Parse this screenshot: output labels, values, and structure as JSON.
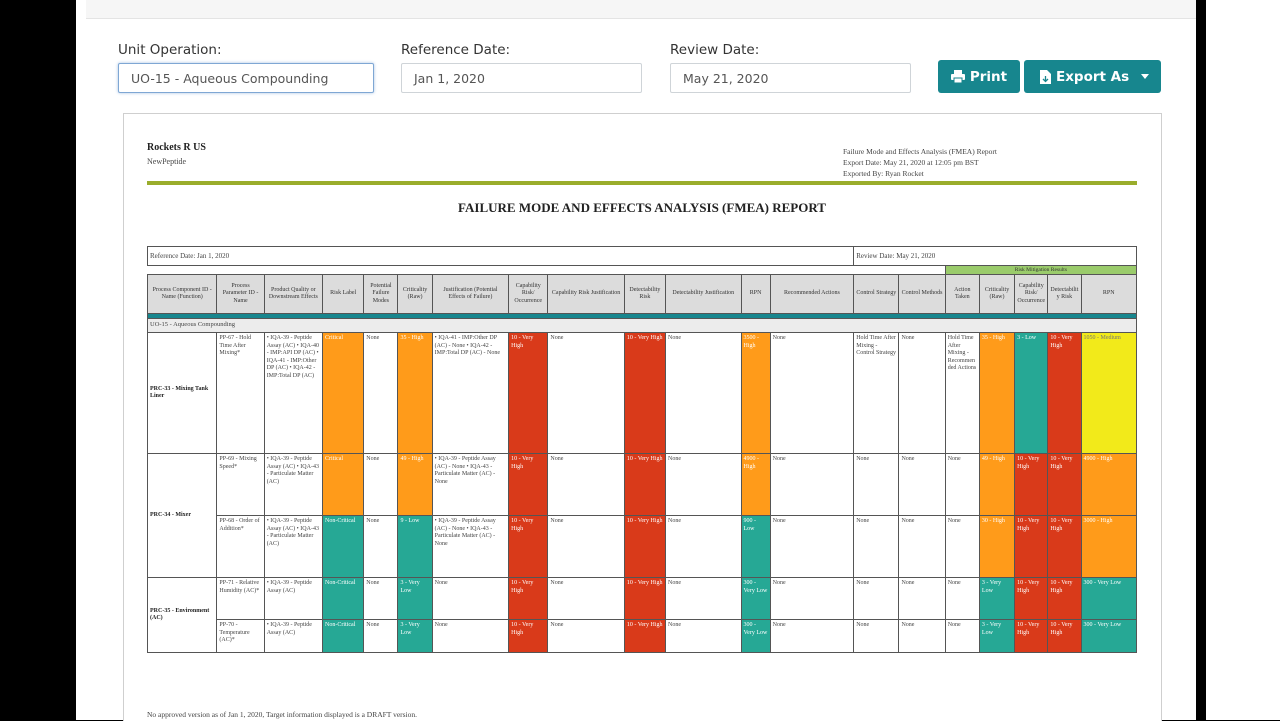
{
  "form": {
    "unit_operation": {
      "label": "Unit Operation:",
      "value": "UO-15 - Aqueous Compounding"
    },
    "reference_date": {
      "label": "Reference Date:",
      "value": "Jan 1, 2020"
    },
    "review_date": {
      "label": "Review Date:",
      "value": "May 21, 2020"
    }
  },
  "buttons": {
    "print": "Print",
    "export": "Export As"
  },
  "report": {
    "company": "Rockets R US",
    "product": "NewPeptide",
    "meta_title": "Failure Mode and Effects Analysis (FMEA) Report",
    "export_date": "Export Date:   May 21, 2020 at 12:05 pm BST",
    "exported_by": "Exported By:   Ryan Rocket",
    "title": "FAILURE MODE AND EFFECTS ANALYSIS (FMEA) REPORT",
    "ref_date": "Reference Date: Jan 1, 2020",
    "rev_date": "Review Date: May 21, 2020",
    "mitigation_header": "Risk Mitigation Results",
    "headers": [
      "Process Component ID - Name (Function)",
      "Process Parameter ID - Name",
      "Product Quality or Downstream Effects",
      "Risk Label",
      "Potential Failure Modes",
      "Criticality (Raw)",
      "Justification (Potential Effects of Failure)",
      "Capability Risk/ Occurrence",
      "Capability Risk Justification",
      "Detectability Risk",
      "Detectability Justification",
      "RPN",
      "Recommended Actions",
      "Control Strategy",
      "Control Methods",
      "Action Taken",
      "Criticality (Raw)",
      "Capability Risk/ Occurrence",
      "Detectability Risk",
      "RPN"
    ],
    "uo_row": "UO-15 - Aqueous Compounding",
    "footer": "No approved version as of Jan 1, 2020, Target information displayed is a DRAFT version.",
    "rows": [
      {
        "pc": "PRC-33 - Mixing Tank Liner",
        "pp": "PP-67 - Hold Time After Mixing*",
        "pq": "• IQA-39 - Peptide Assay (AC) • IQA-40 - IMP:API DP (AC) • IQA-41 - IMP:Other DP (AC) • IQA-42 - IMP:Total DP (AC)",
        "risk": "Critical",
        "pfm": "None",
        "crit": "35 - High",
        "just": "• IQA-41 - IMP:Other DP (AC) - None • IQA-42 - IMP:Total DP (AC) - None",
        "cap": "10 - Very High",
        "capj": "None",
        "det": "10 - Very High",
        "detj": "None",
        "rpn": "3500 - High",
        "rec": "None",
        "cs": "Hold Time After Mixing - Control Strategy",
        "cm": "None",
        "at": "Hold Time After Mixing - Recommended Actions",
        "mc": "35 - High",
        "mo": "3 - Low",
        "md": "10 - Very High",
        "mr": "1050 - Medium"
      },
      {
        "pp": "PP-69 - Mixing Speed*",
        "pq": "• IQA-39 - Peptide Assay (AC) • IQA-43 - Particulate Matter (AC)",
        "risk": "Critical",
        "pfm": "None",
        "crit": "49 - High",
        "just": "• IQA-39 - Peptide Assay (AC) - None • IQA-43 - Particulate Matter (AC) - None",
        "cap": "10 - Very High",
        "capj": "None",
        "det": "10 - Very High",
        "detj": "None",
        "rpn": "4900 - High",
        "rec": "None",
        "cs": "None",
        "cm": "None",
        "at": "None",
        "mc": "49 - High",
        "mo": "10 - Very High",
        "md": "10 - Very High",
        "mr": "4900 - High"
      },
      {
        "pc": "PRC-34 - Mixer",
        "pp": "PP-68 - Order of Addition*",
        "pq": "• IQA-39 - Peptide Assay (AC) • IQA-43 - Particulate Matter (AC)",
        "risk": "Non-Critical",
        "pfm": "None",
        "crit": "9 - Low",
        "just": "• IQA-39 - Peptide Assay (AC) - None • IQA-43 - Particulate Matter (AC) - None",
        "cap": "10 - Very High",
        "capj": "None",
        "det": "10 - Very High",
        "detj": "None",
        "rpn": "900 - Low",
        "rec": "None",
        "cs": "None",
        "cm": "None",
        "at": "None",
        "mc": "30 - High",
        "mo": "10 - Very High",
        "md": "10 - Very High",
        "mr": "3000 - High"
      },
      {
        "pp": "PP-71 - Relative Humidity (AC)*",
        "pq": "• IQA-39 - Peptide Assay (AC)",
        "risk": "Non-Critical",
        "pfm": "None",
        "crit": "3 - Very Low",
        "just": "None",
        "cap": "10 - Very High",
        "capj": "None",
        "det": "10 - Very High",
        "detj": "None",
        "rpn": "300 - Very Low",
        "rec": "None",
        "cs": "None",
        "cm": "None",
        "at": "None",
        "mc": "3 - Very Low",
        "mo": "10 - Very High",
        "md": "10 - Very High",
        "mr": "300 - Very Low"
      },
      {
        "pc": "PRC-35 - Environment (AC)",
        "pp": "PP-70 - Temperature (AC)*",
        "pq": "• IQA-39 - Peptide Assay (AC)",
        "risk": "Non-Critical",
        "pfm": "None",
        "crit": "3 - Very Low",
        "just": "None",
        "cap": "10 - Very High",
        "capj": "None",
        "det": "10 - Very High",
        "detj": "None",
        "rpn": "300 - Very Low",
        "rec": "None",
        "cs": "None",
        "cm": "None",
        "at": "None",
        "mc": "3 - Very Low",
        "mo": "10 - Very High",
        "md": "10 - Very High",
        "mr": "300 - Very Low"
      }
    ]
  },
  "colors": {
    "teal_button": "#17868e",
    "orange": "#ff9b1a",
    "red": "#d93a1a",
    "teal": "#26a895",
    "yellow": "#f2ea1a",
    "green_rule": "#9aad2c"
  }
}
